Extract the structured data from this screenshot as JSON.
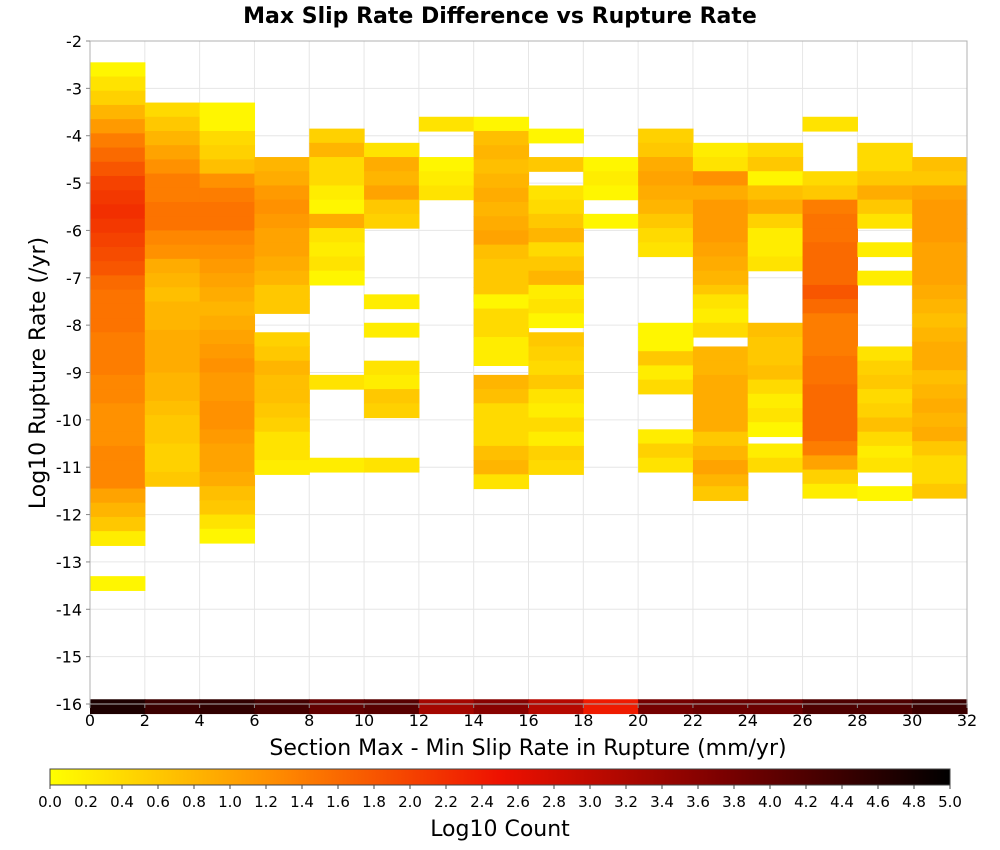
{
  "chart_data": {
    "type": "heatmap",
    "title": "Max Slip Rate Difference vs Rupture Rate",
    "xlabel": "Section Max - Min Slip Rate in Rupture (mm/yr)",
    "ylabel": "Log10 Rupture Rate (/yr)",
    "xlim": [
      0,
      32
    ],
    "ylim": [
      -16,
      -2
    ],
    "x_ticks": [
      0,
      2,
      4,
      6,
      8,
      10,
      12,
      14,
      16,
      18,
      20,
      22,
      24,
      26,
      28,
      30,
      32
    ],
    "x_tick_labels": [
      "0",
      "2",
      "4",
      "6",
      "8",
      "10",
      "12",
      "14",
      "16",
      "18",
      "20",
      "22",
      "24",
      "26",
      "28",
      "30",
      "32"
    ],
    "y_ticks": [
      -2,
      -3,
      -4,
      -5,
      -6,
      -7,
      -8,
      -9,
      -10,
      -11,
      -12,
      -13,
      -14,
      -15,
      -16
    ],
    "y_tick_labels": [
      "-2",
      "-3",
      "-4",
      "-5",
      "-6",
      "-7",
      "-8",
      "-9",
      "-10",
      "-11",
      "-12",
      "-13",
      "-14",
      "-15",
      "-16"
    ],
    "grid": true,
    "cell_width": 2,
    "cell_height": 0.3,
    "colorbar": {
      "label": "Log10 Count",
      "range": [
        0,
        5
      ],
      "ticks": [
        0.0,
        0.2,
        0.4,
        0.6,
        0.8,
        1.0,
        1.2,
        1.4,
        1.6,
        1.8,
        2.0,
        2.2,
        2.4,
        2.6,
        2.8,
        3.0,
        3.2,
        3.4,
        3.6,
        3.8,
        4.0,
        4.2,
        4.4,
        4.6,
        4.8,
        5.0
      ],
      "tick_labels": [
        "0.0",
        "0.2",
        "0.4",
        "0.6",
        "0.8",
        "1.0",
        "1.2",
        "1.4",
        "1.6",
        "1.8",
        "2.0",
        "2.2",
        "2.4",
        "2.6",
        "2.8",
        "3.0",
        "3.2",
        "3.4",
        "3.6",
        "3.8",
        "4.0",
        "4.2",
        "4.4",
        "4.6",
        "4.8",
        "5.0"
      ],
      "stops": [
        "#ffff00",
        "#ff8c00",
        "#ee1100",
        "#7a0000",
        "#000000"
      ]
    },
    "columns": [
      {
        "x": 0,
        "y_start": -2.45,
        "values": [
          0.1,
          0.3,
          0.5,
          0.8,
          1.1,
          1.4,
          1.6,
          1.8,
          2.0,
          2.1,
          2.2,
          2.1,
          2.0,
          1.9,
          1.8,
          1.6,
          1.5,
          1.5,
          1.5,
          1.4,
          1.4,
          1.4,
          1.3,
          1.3,
          1.2,
          1.2,
          1.2,
          1.3,
          1.3,
          1.3,
          1.0,
          0.8,
          0.6,
          0.2
        ]
      },
      {
        "x": 0,
        "y_start": -13.3,
        "values": [
          0.1
        ]
      },
      {
        "x": 2,
        "y_start": -3.3,
        "values": [
          0.4,
          0.6,
          0.8,
          1.0,
          1.2,
          1.4,
          1.4,
          1.5,
          1.5,
          1.3,
          1.2,
          0.9,
          0.8,
          0.7,
          0.8,
          0.8,
          0.9,
          0.9,
          0.9,
          0.8,
          0.8,
          0.7,
          0.6,
          0.6,
          0.5,
          0.5,
          0.6
        ]
      },
      {
        "x": 4,
        "y_start": -3.3,
        "values": [
          0.1,
          0.1,
          0.4,
          0.5,
          0.7,
          1.2,
          1.4,
          1.5,
          1.5,
          1.3,
          1.2,
          1.1,
          1.0,
          0.9,
          0.8,
          0.9,
          1.0,
          1.1,
          1.2,
          1.1,
          1.1,
          1.2,
          1.2,
          1.1,
          1.0,
          1.0,
          0.9,
          0.7,
          0.6,
          0.3,
          0.1
        ]
      },
      {
        "x": 6,
        "y_start": -4.45,
        "values": [
          0.8,
          0.9,
          1.1,
          1.2,
          1.1,
          1.0,
          1.0,
          0.9,
          0.8,
          0.6,
          0.6
        ]
      },
      {
        "x": 6,
        "y_start": -8.15,
        "values": [
          0.5,
          0.6,
          0.8,
          0.7,
          0.7,
          0.6,
          0.5,
          0.3,
          0.3,
          0.2
        ]
      },
      {
        "x": 8,
        "y_start": -3.85,
        "values": [
          0.5,
          0.8,
          0.4,
          0.4,
          0.2,
          0.1,
          0.9,
          0.3,
          0.2,
          0.3,
          0.1
        ]
      },
      {
        "x": 8,
        "y_start": -9.05,
        "values": [
          0.3
        ]
      },
      {
        "x": 8,
        "y_start": -10.8,
        "values": [
          0.2
        ]
      },
      {
        "x": 10,
        "y_start": -4.15,
        "values": [
          0.3,
          0.9,
          0.8,
          1.0,
          0.6,
          0.5
        ]
      },
      {
        "x": 10,
        "y_start": -7.35,
        "values": [
          0.2
        ]
      },
      {
        "x": 10,
        "y_start": -7.95,
        "values": [
          0.2
        ]
      },
      {
        "x": 10,
        "y_start": -8.75,
        "values": [
          0.3,
          0.2,
          0.6,
          0.5
        ]
      },
      {
        "x": 10,
        "y_start": -10.8,
        "values": [
          0.3
        ]
      },
      {
        "x": 12,
        "y_start": -3.6,
        "values": [
          0.3
        ]
      },
      {
        "x": 12,
        "y_start": -4.45,
        "values": [
          0.1,
          0.2,
          0.3
        ]
      },
      {
        "x": 14,
        "y_start": -3.6,
        "values": [
          0.1,
          0.7,
          0.8,
          0.7,
          0.8,
          0.9,
          0.8,
          0.9,
          1.0,
          0.7,
          0.6,
          0.6,
          0.6
        ]
      },
      {
        "x": 14,
        "y_start": -7.35,
        "values": [
          0.1,
          0.4,
          0.4,
          0.2,
          0.2
        ]
      },
      {
        "x": 14,
        "y_start": -9.05,
        "values": [
          0.8,
          0.7,
          0.4,
          0.4,
          0.4,
          0.7,
          0.8,
          0.3
        ]
      },
      {
        "x": 16,
        "y_start": -3.85,
        "values": [
          0.1
        ]
      },
      {
        "x": 16,
        "y_start": -4.45,
        "values": [
          0.6
        ]
      },
      {
        "x": 16,
        "y_start": -5.05,
        "values": [
          0.3,
          0.4,
          0.6,
          0.8,
          0.4,
          0.6,
          0.8,
          0.2,
          0.3,
          0.1
        ]
      },
      {
        "x": 16,
        "y_start": -8.15,
        "values": [
          0.6,
          0.5,
          0.4,
          0.6,
          0.3,
          0.2,
          0.4,
          0.2,
          0.5,
          0.4
        ]
      },
      {
        "x": 18,
        "y_start": -4.45,
        "values": [
          0.1,
          0.2
        ]
      },
      {
        "x": 18,
        "y_start": -5.05,
        "values": [
          0.1
        ]
      },
      {
        "x": 18,
        "y_start": -5.65,
        "values": [
          0.1
        ]
      },
      {
        "x": 20,
        "y_start": -3.85,
        "values": [
          0.5,
          0.6,
          0.9,
          1.0,
          0.9,
          0.8,
          0.6,
          0.4,
          0.3
        ]
      },
      {
        "x": 20,
        "y_start": -7.95,
        "values": [
          0.1,
          0.1,
          0.6,
          0.2,
          0.4
        ]
      },
      {
        "x": 20,
        "y_start": -10.2,
        "values": [
          0.2,
          0.5,
          0.3
        ]
      },
      {
        "x": 22,
        "y_start": -4.15,
        "values": [
          0.2,
          0.3,
          1.2,
          0.9,
          1.1,
          1.1,
          1.1,
          1.0,
          0.9,
          0.8,
          0.6
        ]
      },
      {
        "x": 22,
        "y_start": -7.35,
        "values": [
          0.3,
          0.2,
          0.4
        ]
      },
      {
        "x": 22,
        "y_start": -8.45,
        "values": [
          0.8,
          0.8,
          0.9,
          0.9,
          0.9,
          0.9,
          0.6,
          0.8,
          1.0,
          0.8
        ]
      },
      {
        "x": 22,
        "y_start": -11.4,
        "values": [
          0.6
        ]
      },
      {
        "x": 24,
        "y_start": -4.15,
        "values": [
          0.4,
          0.6,
          0.1,
          0.7,
          0.9,
          0.5,
          0.2,
          0.2,
          0.3
        ]
      },
      {
        "x": 24,
        "y_start": -7.95,
        "values": [
          0.7,
          0.6,
          0.6,
          0.7,
          0.4,
          0.2,
          0.3,
          0.1
        ]
      },
      {
        "x": 24,
        "y_start": -10.5,
        "values": [
          0.2,
          0.4
        ]
      },
      {
        "x": 26,
        "y_start": -3.6,
        "values": [
          0.3
        ]
      },
      {
        "x": 26,
        "y_start": -4.75,
        "values": [
          0.4,
          0.6,
          1.4,
          1.5,
          1.5,
          1.6,
          1.6,
          1.6,
          1.8,
          1.6,
          1.4,
          1.4,
          1.4,
          1.5,
          1.5,
          1.6,
          1.6,
          1.6,
          1.6,
          1.4,
          1.0,
          0.5,
          0.2
        ]
      },
      {
        "x": 28,
        "y_start": -4.15,
        "values": [
          0.4,
          0.4,
          0.6,
          0.9,
          0.6,
          0.3
        ]
      },
      {
        "x": 28,
        "y_start": -6.25,
        "values": [
          0.2
        ]
      },
      {
        "x": 28,
        "y_start": -6.85,
        "values": [
          0.2
        ]
      },
      {
        "x": 28,
        "y_start": -8.45,
        "values": [
          0.3,
          0.5,
          0.6,
          0.4
        ]
      },
      {
        "x": 28,
        "y_start": -9.65,
        "values": [
          0.5,
          0.7,
          0.4,
          0.2
        ]
      },
      {
        "x": 28,
        "y_start": -10.8,
        "values": [
          0.3
        ]
      },
      {
        "x": 28,
        "y_start": -11.4,
        "values": [
          0.1
        ]
      },
      {
        "x": 30,
        "y_start": -4.45,
        "values": [
          0.7,
          0.6,
          1.0,
          1.1,
          1.1,
          1.1,
          1.0,
          1.0,
          1.0,
          0.9,
          0.8,
          0.7,
          0.8,
          0.9,
          0.9,
          0.7,
          0.8,
          0.9,
          0.8,
          0.9,
          0.6,
          0.4,
          0.4,
          0.6
        ]
      },
      {
        "x": 0,
        "y_start": -15.9,
        "values": [
          4.7
        ]
      },
      {
        "x": 2,
        "y_start": -15.9,
        "values": [
          4.4
        ]
      },
      {
        "x": 4,
        "y_start": -15.9,
        "values": [
          4.5
        ]
      },
      {
        "x": 6,
        "y_start": -15.9,
        "values": [
          4.3
        ]
      },
      {
        "x": 8,
        "y_start": -15.9,
        "values": [
          4.0
        ]
      },
      {
        "x": 10,
        "y_start": -15.9,
        "values": [
          4.1
        ]
      },
      {
        "x": 12,
        "y_start": -15.9,
        "values": [
          3.3
        ]
      },
      {
        "x": 14,
        "y_start": -15.9,
        "values": [
          3.6
        ]
      },
      {
        "x": 16,
        "y_start": -15.9,
        "values": [
          3.1
        ]
      },
      {
        "x": 18,
        "y_start": -15.9,
        "values": [
          2.4
        ]
      },
      {
        "x": 20,
        "y_start": -15.9,
        "values": [
          3.8
        ]
      },
      {
        "x": 22,
        "y_start": -15.9,
        "values": [
          3.9
        ]
      },
      {
        "x": 24,
        "y_start": -15.9,
        "values": [
          3.9
        ]
      },
      {
        "x": 26,
        "y_start": -15.9,
        "values": [
          4.2
        ]
      },
      {
        "x": 28,
        "y_start": -15.9,
        "values": [
          4.2
        ]
      },
      {
        "x": 30,
        "y_start": -15.9,
        "values": [
          4.4
        ]
      }
    ]
  }
}
